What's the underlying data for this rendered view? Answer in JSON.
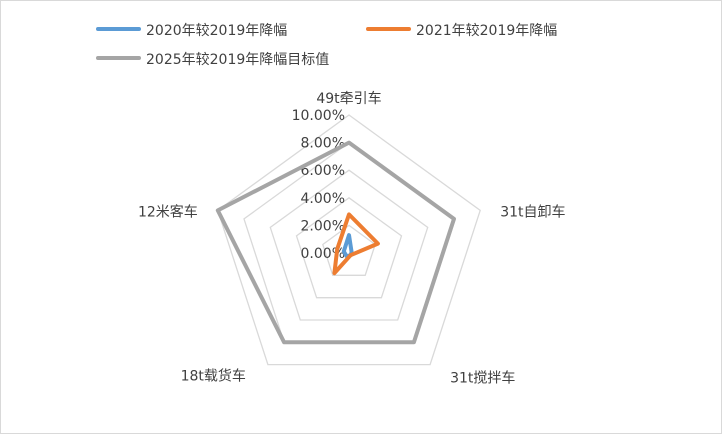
{
  "chart_data": {
    "type": "radar",
    "categories": [
      "49t牵引车",
      "31t自卸车",
      "31t搅拌车",
      "18t载货车",
      "12米客车"
    ],
    "series": [
      {
        "name": "2020年较2019年降幅",
        "color": "#5b9bd5",
        "values": [
          1.3,
          0.2,
          0.2,
          0.3,
          0.4
        ]
      },
      {
        "name": "2021年较2019年降幅",
        "color": "#ed7d31",
        "values": [
          2.8,
          2.2,
          0.2,
          1.8,
          0.9
        ]
      },
      {
        "name": "2025年较2019年降幅目标值",
        "color": "#a5a5a5",
        "values": [
          8.0,
          8.0,
          8.0,
          8.0,
          10.0
        ]
      }
    ],
    "tick_labels": [
      "0.00%",
      "2.00%",
      "4.00%",
      "6.00%",
      "8.00%",
      "10.00%"
    ],
    "rmin": 0,
    "rmax": 10,
    "grid": true,
    "grid_color": "#d9d9d9",
    "legend_position": "top"
  }
}
